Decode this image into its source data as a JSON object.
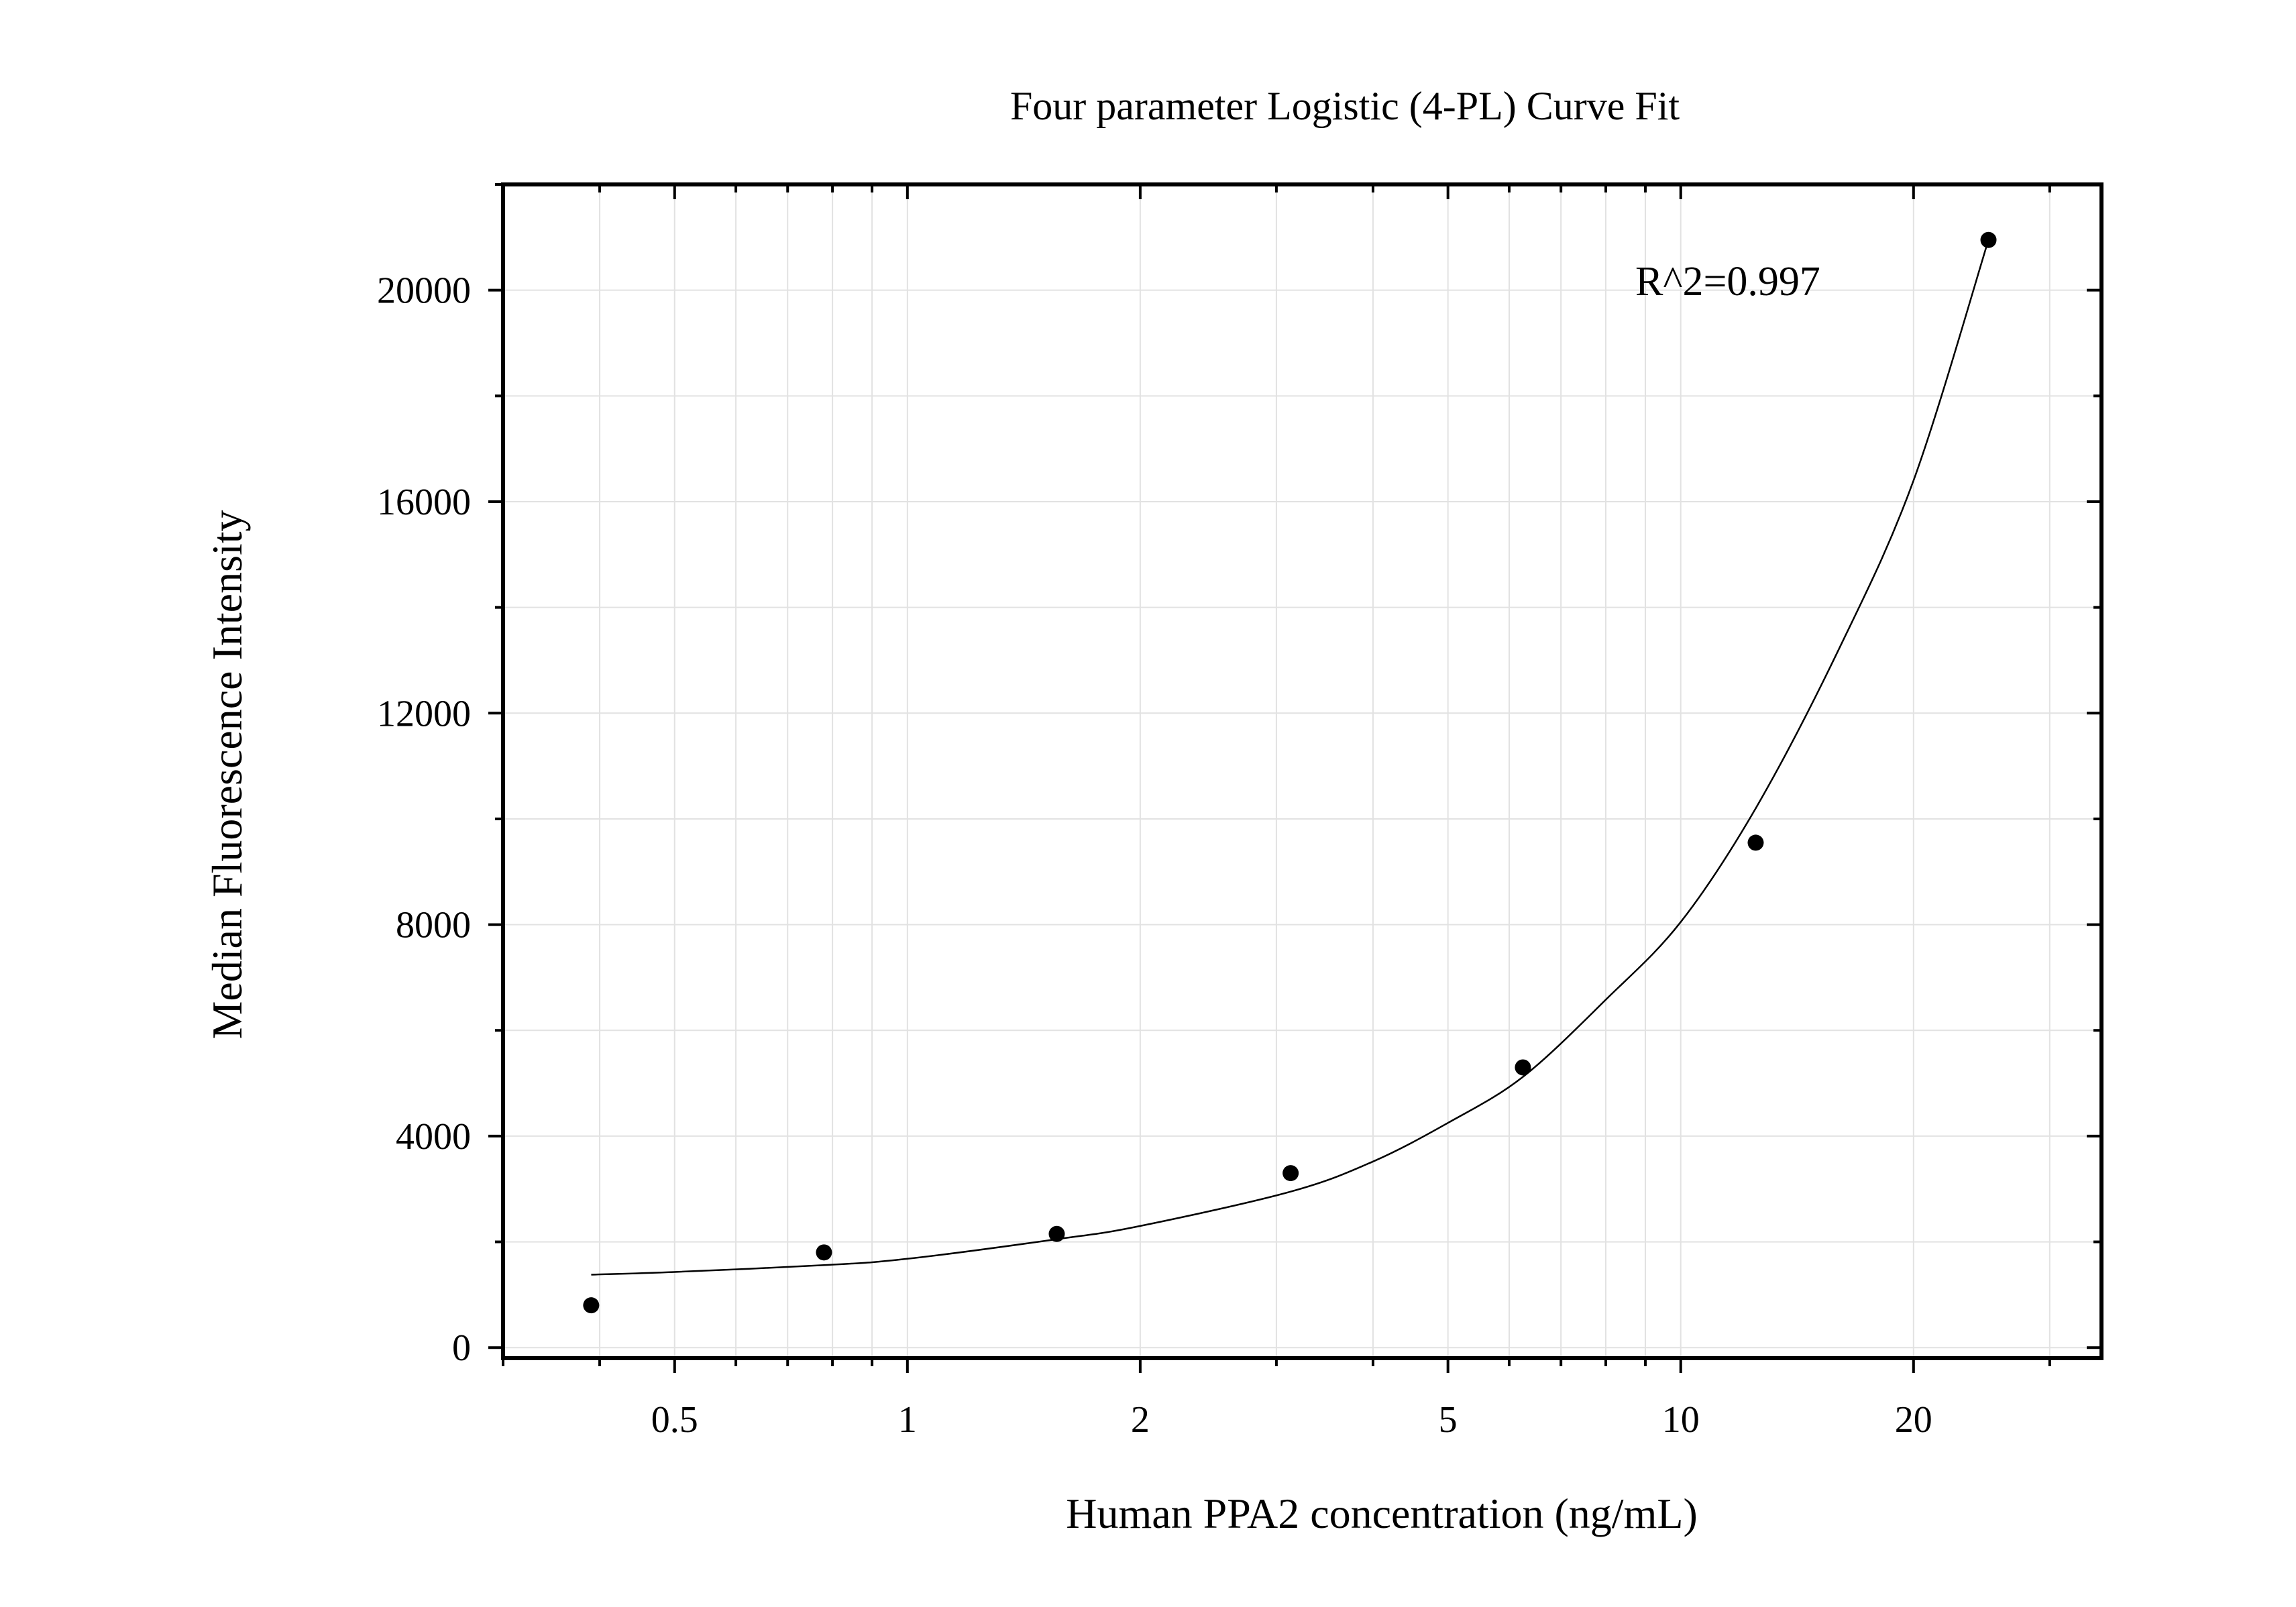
{
  "chart_data": {
    "type": "scatter",
    "title": "Four parameter Logistic (4-PL) Curve Fit",
    "xlabel": "Human PPA2 concentration (ng/mL)",
    "ylabel": "Median Fluorescence Intensity",
    "x_scale": "log",
    "xlim": [
      0.3,
      35
    ],
    "ylim": [
      -200,
      22000
    ],
    "x_ticks": [
      0.5,
      1,
      2,
      5,
      10,
      20
    ],
    "x_tick_labels": [
      "0.5",
      "1",
      "2",
      "5",
      "10",
      "20"
    ],
    "y_ticks": [
      0,
      4000,
      8000,
      12000,
      16000,
      20000
    ],
    "y_tick_labels": [
      "0",
      "4000",
      "8000",
      "12000",
      "16000",
      "20000"
    ],
    "grid": true,
    "legend": "none",
    "annotation": "R^2=0.997",
    "series": [
      {
        "type": "scatter",
        "x": [
          0.39,
          0.78,
          1.56,
          3.13,
          6.25,
          12.5,
          25
        ],
        "y": [
          800,
          1800,
          2150,
          3300,
          5300,
          9550,
          20950
        ],
        "color": "#000000"
      },
      {
        "type": "line",
        "x": [
          0.39,
          0.5,
          0.78,
          1,
          1.56,
          2,
          3.13,
          4,
          5,
          6.25,
          8,
          10,
          12.5,
          16,
          20,
          25
        ],
        "y": [
          1380,
          1430,
          1560,
          1680,
          2050,
          2300,
          2950,
          3520,
          4250,
          5120,
          6580,
          8050,
          10200,
          13200,
          16400,
          20950
        ],
        "color": "#000000"
      }
    ],
    "colors": {
      "grid": "#e2e2e2",
      "axis": "#000000",
      "marker": "#000000"
    }
  }
}
